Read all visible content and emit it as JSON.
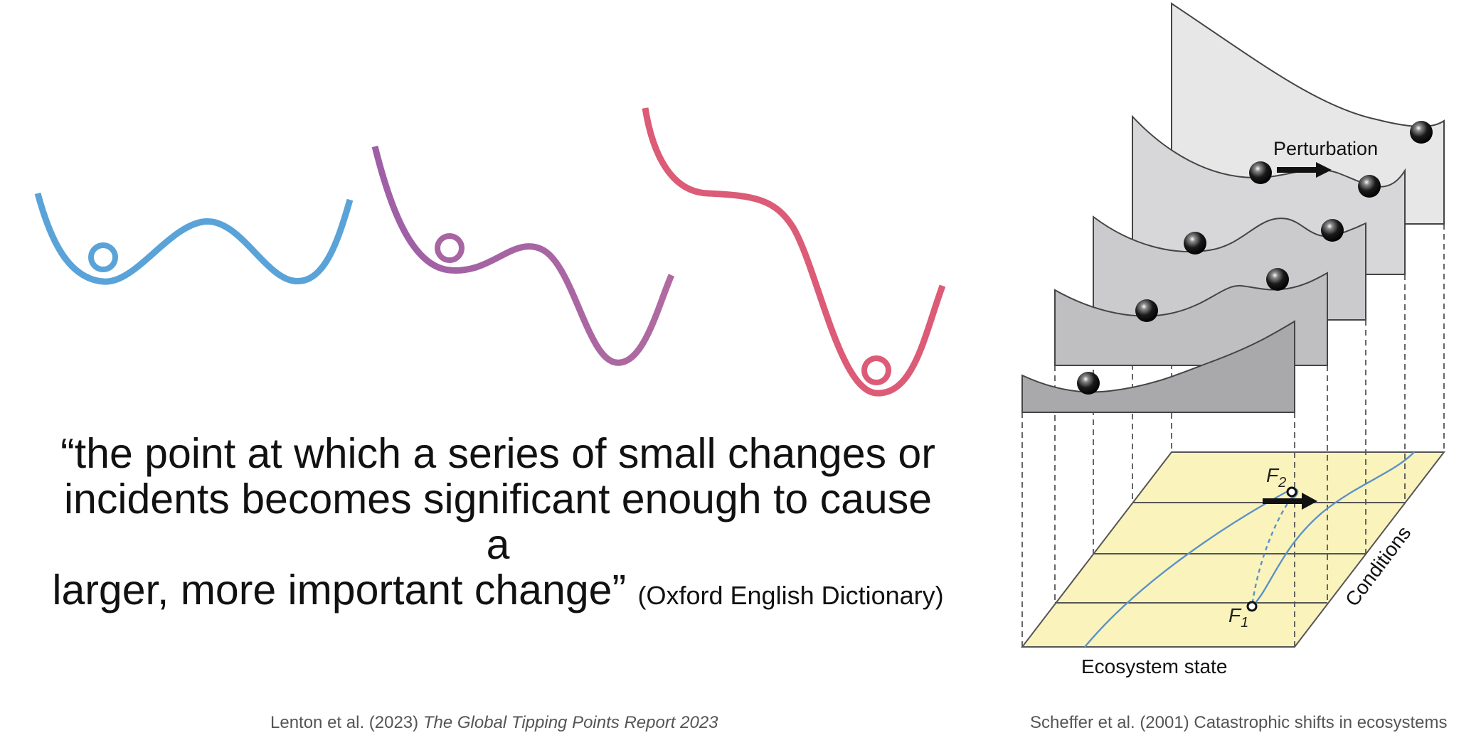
{
  "colors": {
    "blue": "#5aa3d8",
    "purple": "#a865a3",
    "red": "#dc5b76",
    "plane_fill": "#fbf3bc",
    "panel_colors": [
      "#a9a9ab",
      "#bfbfc1",
      "#cbcbcd",
      "#d7d7d9",
      "#e7e7e8"
    ],
    "trajectory": "#5b93c7"
  },
  "quote": {
    "line1": "“the point at which a series of small changes or",
    "line2": "incidents becomes significant enough to cause a",
    "line3": "larger, more important change”",
    "source": "(Oxford English Dictionary)"
  },
  "credits": {
    "left_plain": "Lenton et al. (2023)",
    "left_italic": "The Global Tipping Points Report 2023",
    "right": "Scheffer et al. (2001) Catastrophic shifts in ecosystems"
  },
  "diagram": {
    "perturbation_label": "Perturbation",
    "f2_main": "F",
    "f2_sub": "2",
    "f1_main": "F",
    "f1_sub": "1",
    "x_axis_label": "Ecosystem state",
    "y_axis_label": "Conditions"
  }
}
